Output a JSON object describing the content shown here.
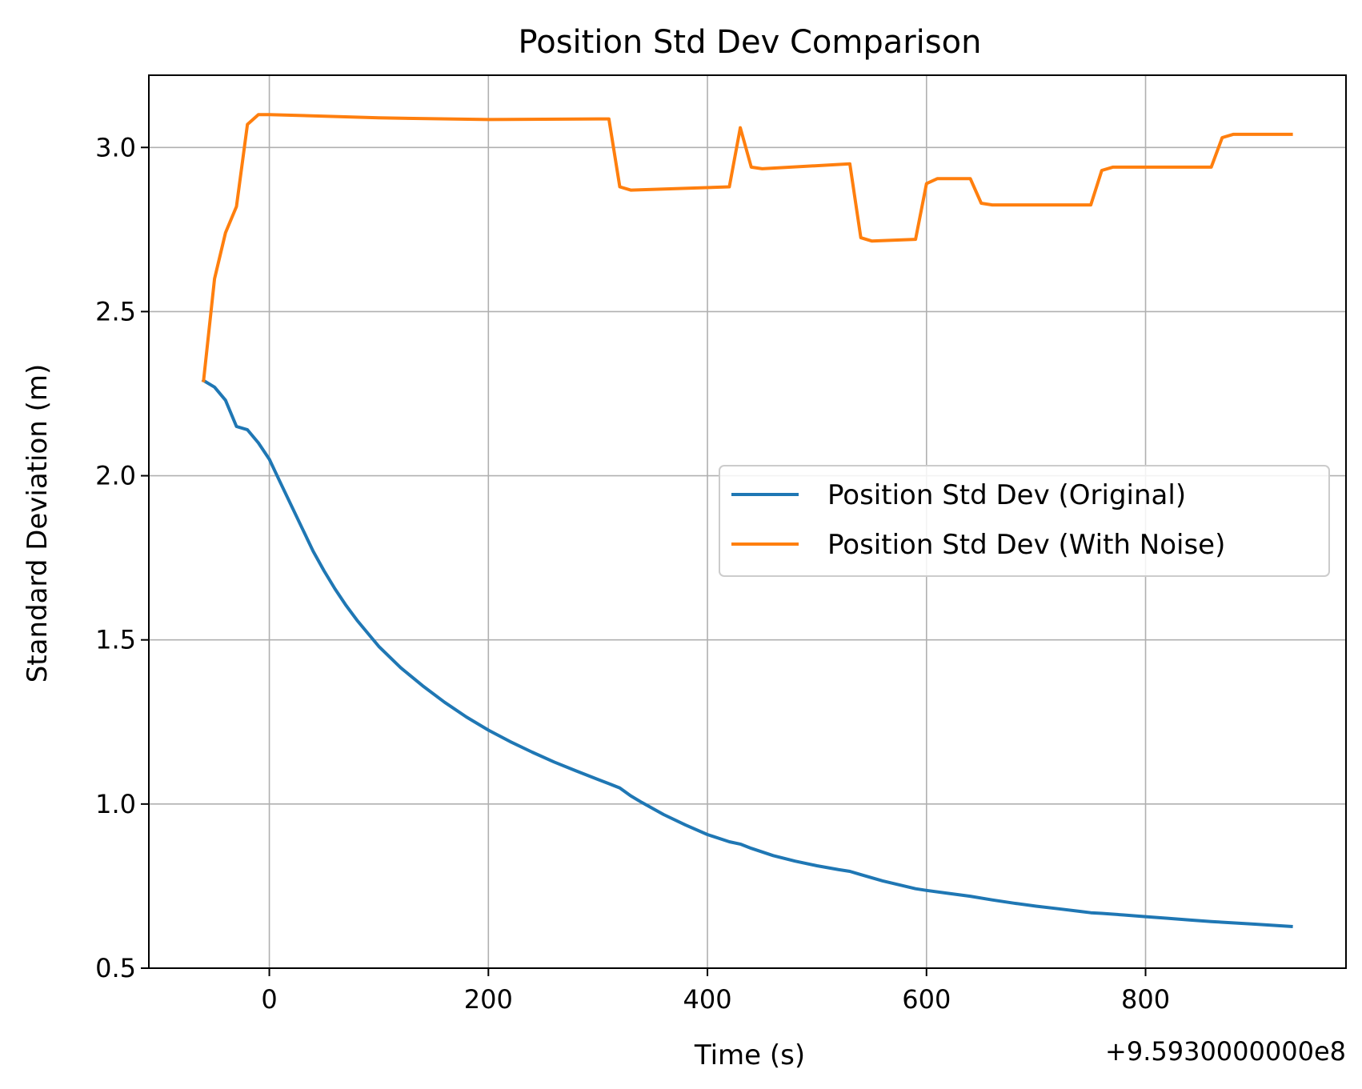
{
  "chart_data": {
    "type": "line",
    "title": "Position Std Dev Comparison",
    "xlabel": "Time (s)",
    "ylabel": "Standard Deviation (m)",
    "x_offset_label": "+9.5930000000e8",
    "xlim": [
      -110,
      983
    ],
    "ylim": [
      0.5,
      3.22
    ],
    "x_ticks": [
      0,
      200,
      400,
      600,
      800
    ],
    "x_tick_labels": [
      "0",
      "200",
      "400",
      "600",
      "800"
    ],
    "y_ticks": [
      0.5,
      1.0,
      1.5,
      2.0,
      2.5,
      3.0
    ],
    "y_tick_labels": [
      "0.5",
      "1.0",
      "1.5",
      "2.0",
      "2.5",
      "3.0"
    ],
    "grid": true,
    "legend_position": "center-right",
    "series": [
      {
        "name": "Position Std Dev (Original)",
        "color": "#1f77b4",
        "x": [
          -60,
          -50,
          -40,
          -30,
          -20,
          -10,
          0,
          10,
          20,
          30,
          40,
          50,
          60,
          70,
          80,
          90,
          100,
          120,
          140,
          160,
          180,
          200,
          220,
          240,
          260,
          280,
          300,
          310,
          320,
          330,
          340,
          360,
          380,
          400,
          420,
          430,
          440,
          460,
          480,
          500,
          520,
          530,
          540,
          560,
          580,
          590,
          600,
          620,
          640,
          660,
          680,
          700,
          720,
          740,
          750,
          760,
          780,
          800,
          820,
          840,
          860,
          880,
          900,
          920,
          933
        ],
        "y": [
          2.29,
          2.27,
          2.23,
          2.15,
          2.14,
          2.1,
          2.05,
          1.98,
          1.91,
          1.84,
          1.77,
          1.71,
          1.655,
          1.605,
          1.56,
          1.52,
          1.48,
          1.415,
          1.36,
          1.31,
          1.265,
          1.225,
          1.19,
          1.158,
          1.128,
          1.101,
          1.075,
          1.062,
          1.049,
          1.025,
          1.005,
          0.968,
          0.936,
          0.907,
          0.885,
          0.878,
          0.865,
          0.843,
          0.826,
          0.812,
          0.8,
          0.795,
          0.785,
          0.766,
          0.75,
          0.742,
          0.737,
          0.728,
          0.719,
          0.708,
          0.698,
          0.689,
          0.681,
          0.673,
          0.669,
          0.667,
          0.662,
          0.657,
          0.652,
          0.647,
          0.642,
          0.638,
          0.634,
          0.63,
          0.627
        ]
      },
      {
        "name": "Position Std Dev (With Noise)",
        "color": "#ff7f0e",
        "x": [
          -60,
          -50,
          -40,
          -30,
          -20,
          -10,
          0,
          100,
          200,
          300,
          310,
          320,
          330,
          420,
          430,
          440,
          450,
          530,
          540,
          550,
          590,
          600,
          610,
          640,
          650,
          660,
          750,
          760,
          770,
          860,
          870,
          880,
          933
        ],
        "y": [
          2.29,
          2.6,
          2.74,
          2.82,
          3.07,
          3.1,
          3.1,
          3.09,
          3.085,
          3.087,
          3.087,
          2.88,
          2.87,
          2.88,
          3.06,
          2.94,
          2.935,
          2.95,
          2.725,
          2.715,
          2.72,
          2.89,
          2.905,
          2.905,
          2.83,
          2.825,
          2.825,
          2.93,
          2.94,
          2.94,
          3.03,
          3.04,
          3.04
        ]
      }
    ]
  }
}
